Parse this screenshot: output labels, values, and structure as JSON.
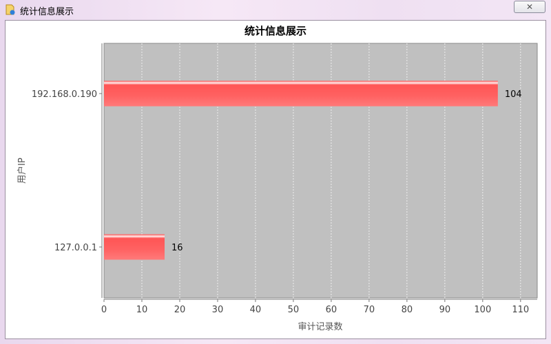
{
  "window": {
    "title": "统计信息展示",
    "close_icon": "close-icon",
    "app_icon": "document-info-icon"
  },
  "chart_data": {
    "type": "bar",
    "orientation": "horizontal",
    "title": "统计信息展示",
    "xlabel": "审计记录数",
    "ylabel": "用户IP",
    "categories": [
      "192.168.0.190",
      "127.0.0.1"
    ],
    "values": [
      104,
      16
    ],
    "data_labels": [
      "104",
      "16"
    ],
    "xlim": [
      0,
      114.4
    ],
    "xticks": [
      "0",
      "10",
      "20",
      "30",
      "40",
      "50",
      "60",
      "70",
      "80",
      "90",
      "100",
      "110"
    ],
    "grid": true,
    "bar_color": "#ff5a5a",
    "plot_background": "#c0c0c0"
  }
}
